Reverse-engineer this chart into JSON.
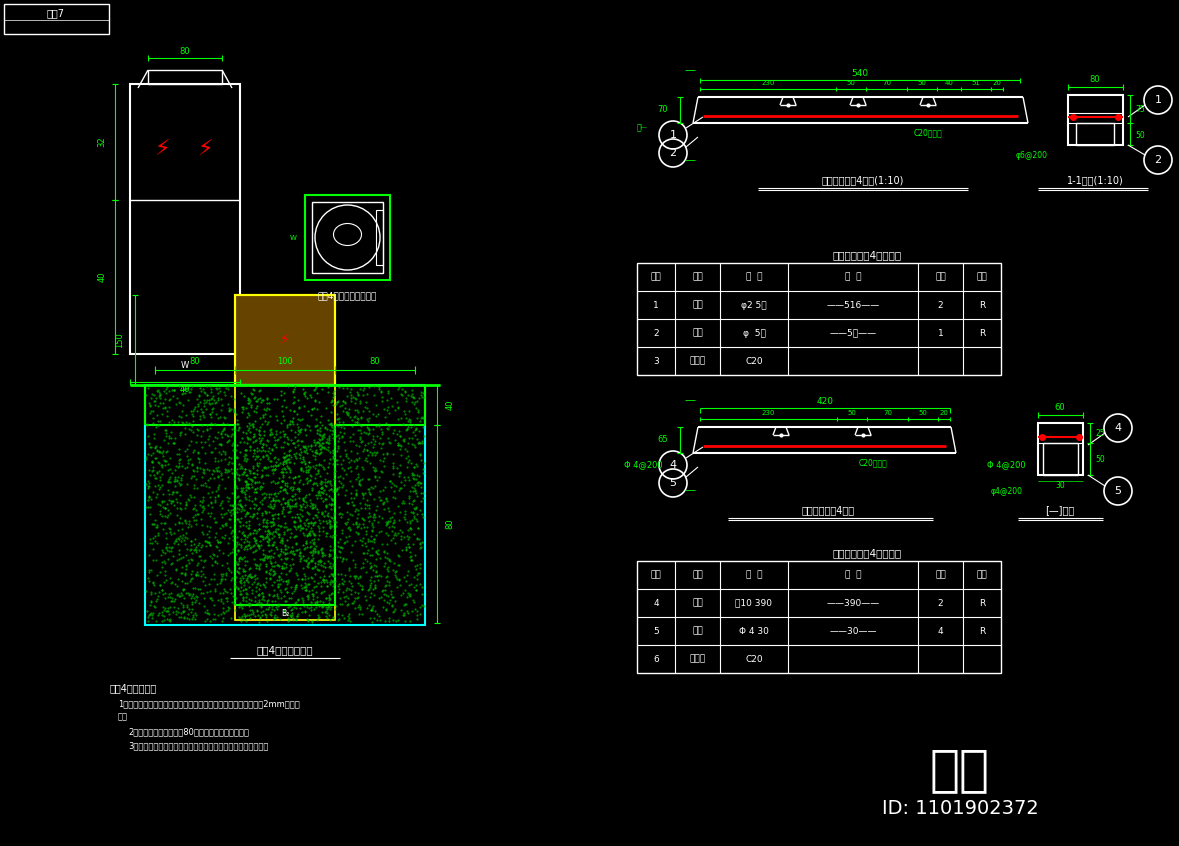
{
  "bg_color": "#000000",
  "green": "#00FF00",
  "cyan": "#00FFFF",
  "yellow": "#FFFF00",
  "white": "#FFFFFF",
  "red": "#FF0000",
  "top_label": "电栒7",
  "notes_title": "电缓4标示说明：",
  "cable_bracket_3_title": "预制三线电缓4支溶料表",
  "cable_bracket_2_title": "预制二线电缓4支溶料表",
  "bracket3_label": "一化三线电缓4支架(1:10)",
  "bracket2_label": "一化二线电缓4支架",
  "section1_label": "1-1剑面(1:10)",
  "section2_label": "[—]剑面",
  "cable_line_label": "电缓4线路标示版管道图",
  "upper_view_label": "电缓4标示版示意图",
  "watermark": "知末",
  "id_text": "ID: 1101902372"
}
